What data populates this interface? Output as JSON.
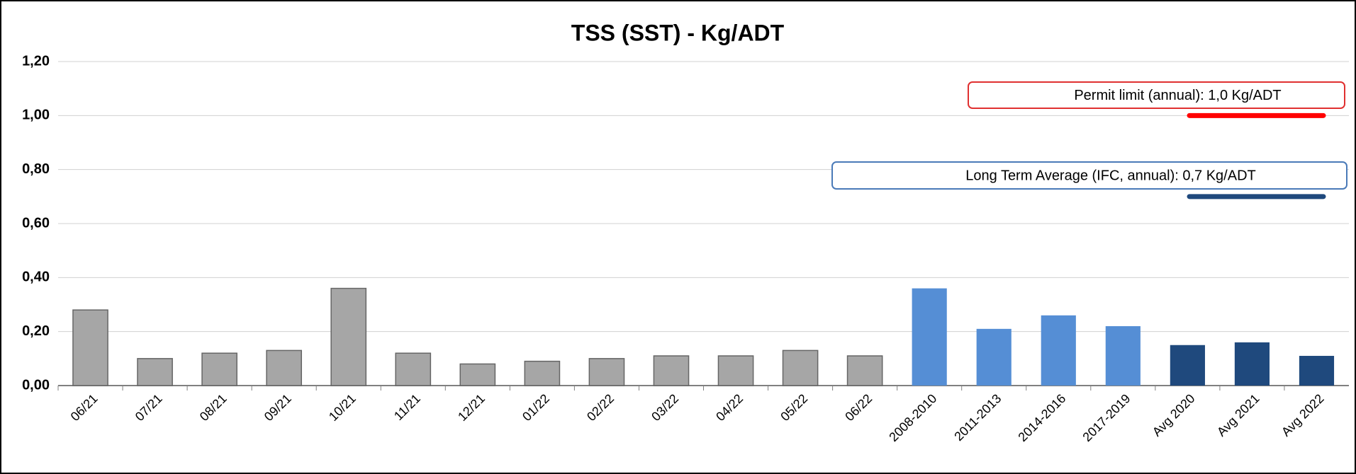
{
  "chart_data": {
    "type": "bar",
    "title": "TSS (SST) - Kg/ADT",
    "categories": [
      "06/21",
      "07/21",
      "08/21",
      "09/21",
      "10/21",
      "11/21",
      "12/21",
      "01/22",
      "02/22",
      "03/22",
      "04/22",
      "05/22",
      "06/22",
      "2008-2010",
      "2011-2013",
      "2014-2016",
      "2017-2019",
      "Avg 2020",
      "Avg 2021",
      "Avg 2022"
    ],
    "values": [
      0.28,
      0.1,
      0.12,
      0.13,
      0.36,
      0.12,
      0.08,
      0.09,
      0.1,
      0.11,
      0.11,
      0.13,
      0.11,
      0.36,
      0.21,
      0.26,
      0.22,
      0.15,
      0.16,
      0.11
    ],
    "colors": [
      "#a6a6a6",
      "#a6a6a6",
      "#a6a6a6",
      "#a6a6a6",
      "#a6a6a6",
      "#a6a6a6",
      "#a6a6a6",
      "#a6a6a6",
      "#a6a6a6",
      "#a6a6a6",
      "#a6a6a6",
      "#a6a6a6",
      "#a6a6a6",
      "#558ed5",
      "#558ed5",
      "#558ed5",
      "#558ed5",
      "#1f497d",
      "#1f497d",
      "#1f497d"
    ],
    "ylim": [
      0,
      1.2
    ],
    "yticks": [
      {
        "value": 0,
        "label": "0,00"
      },
      {
        "value": 0.2,
        "label": "0,20"
      },
      {
        "value": 0.4,
        "label": "0,40"
      },
      {
        "value": 0.6,
        "label": "0,60"
      },
      {
        "value": 0.8,
        "label": "0,80"
      },
      {
        "value": 1,
        "label": "1,00"
      },
      {
        "value": 1.2,
        "label": "1,20"
      }
    ],
    "grid": true,
    "reference_lines": [
      {
        "label": "Permit limit (annual): 1,0 Kg/ADT",
        "value": 1,
        "color": "#ff0000"
      },
      {
        "label": "Long Term Average (IFC, annual): 0,7 Kg/ADT",
        "value": 0.7,
        "color": "#1f497d"
      }
    ]
  }
}
